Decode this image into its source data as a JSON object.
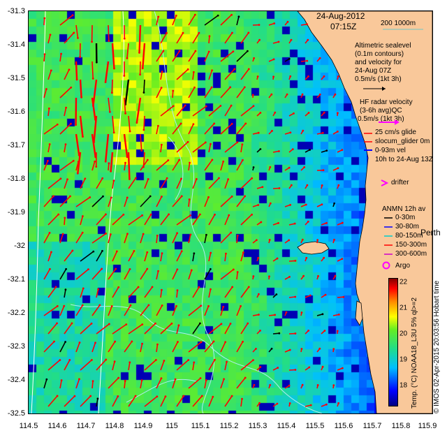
{
  "map": {
    "date_title": "24-Aug-2012",
    "time_title": "07:15Z",
    "lat_ticks": [
      "-31.3",
      "-31.4",
      "-31.5",
      "-31.6",
      "-31.7",
      "-31.8",
      "-31.9",
      "-32",
      "-32.1",
      "-32.2",
      "-32.3",
      "-32.4",
      "-32.5"
    ],
    "lon_ticks": [
      "114.5",
      "114.6",
      "114.7",
      "114.8",
      "114.9",
      "115",
      "115.1",
      "115.2",
      "115.3",
      "115.4",
      "115.5",
      "115.6",
      "115.7",
      "115.8",
      "115.9"
    ],
    "lat_range": [
      -32.5,
      -31.3
    ],
    "lon_range": [
      114.5,
      115.9
    ],
    "colors": {
      "land": "#f9c89a",
      "vector": "#ff0000",
      "black_vector": "#000000",
      "contour": "#aeeeee"
    }
  },
  "legend": {
    "depth_scale": "200  1000m",
    "altimetric_lines": [
      "Altimetric sealevel",
      "(0.1m contours)",
      "and velocity for",
      "24-Aug 07Z",
      "0.5m/s (1kt 3h)"
    ],
    "hf_lines": [
      "HF radar velocity",
      "(3-6h avg)QC",
      "0.5m/s (1kt 3h)"
    ],
    "glider_lines": [
      "25 cm/s glide",
      "slocum_glider 0m",
      "0-93m vel",
      "10h to 24-Aug 13Z"
    ],
    "drifter": "drifter",
    "anmn_title": "ANMN 12h av",
    "anmn_items": [
      "0-30m",
      "30-80m",
      "80-150m",
      "150-300m",
      "300-600m"
    ],
    "place_name": "Perth",
    "argo": "Argo"
  },
  "colorbar": {
    "ticks": [
      "22",
      "21",
      "20",
      "19",
      "18"
    ],
    "label": "Temp. (°C) NOAA18_L3U 5% ql>=2",
    "range": [
      17.2,
      22.2
    ]
  },
  "footer": {
    "credit": "© IMOS 02-Apr-2015 20:03:56 Hobart time"
  }
}
